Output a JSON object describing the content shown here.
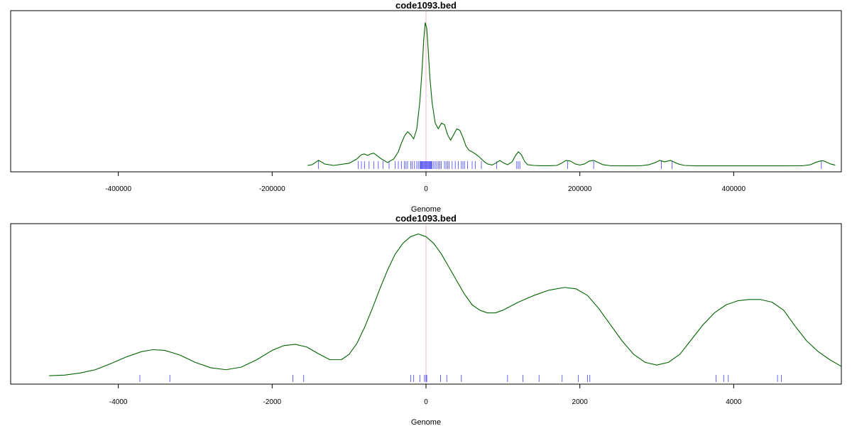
{
  "chart_data": [
    {
      "type": "line",
      "title": "code1093.bed",
      "xlabel": "Genome",
      "ylabel": "",
      "xlim": [
        -540000,
        540000
      ],
      "x_ticks": [
        -400000,
        -200000,
        0,
        200000,
        400000
      ],
      "x_tick_labels": [
        "-400000",
        "-200000",
        "0",
        "200000",
        "400000"
      ],
      "reference_line_x": 0,
      "series": [
        {
          "color": "#006400",
          "x": [
            -154000,
            -148000,
            -144000,
            -140000,
            -136000,
            -132000,
            -120000,
            -100000,
            -90000,
            -84000,
            -80000,
            -76000,
            -72000,
            -68000,
            -64000,
            -58000,
            -50000,
            -42000,
            -36000,
            -32000,
            -28000,
            -24000,
            -20000,
            -16000,
            -12000,
            -8000,
            -5000,
            -3000,
            -1000,
            1000,
            3000,
            5000,
            8000,
            12000,
            16000,
            20000,
            24000,
            28000,
            32000,
            36000,
            40000,
            44000,
            48000,
            52000,
            56000,
            60000,
            64000,
            68000,
            72000,
            76000,
            80000,
            86000,
            92000,
            96000,
            100000,
            106000,
            112000,
            116000,
            120000,
            124000,
            128000,
            132000,
            140000,
            150000,
            160000,
            170000,
            176000,
            182000,
            188000,
            194000,
            200000,
            206000,
            212000,
            218000,
            224000,
            230000,
            240000,
            260000,
            280000,
            290000,
            298000,
            304000,
            310000,
            314000,
            318000,
            322000,
            328000,
            336000,
            350000,
            380000,
            420000,
            460000,
            490000,
            500000,
            506000,
            512000,
            516000,
            520000,
            526000,
            532000
          ],
          "y": [
            0.5,
            1,
            2.5,
            4,
            3,
            1.5,
            0.5,
            2,
            5,
            8,
            8.5,
            7.5,
            8.5,
            9,
            7.5,
            5,
            2.5,
            5,
            10,
            16,
            21,
            24,
            22,
            19,
            26,
            45,
            68,
            88,
            100,
            96,
            80,
            62,
            44,
            30,
            26,
            30,
            29,
            22,
            18,
            22,
            26,
            25,
            20,
            14,
            11,
            10,
            8.5,
            7,
            5,
            3,
            1.5,
            0.8,
            2.5,
            4,
            2.5,
            1,
            3,
            7,
            10,
            8,
            3.5,
            1,
            0.5,
            0.3,
            0.3,
            0.5,
            2,
            4,
            3.5,
            1.5,
            0.8,
            1.5,
            3.5,
            4,
            2.5,
            1,
            0.3,
            0.2,
            0.3,
            1,
            2.5,
            4,
            3,
            3.5,
            4,
            3,
            1.5,
            0.5,
            0.2,
            0.2,
            0.2,
            0.2,
            0.3,
            1,
            2.5,
            3.5,
            3.8,
            3,
            1.5,
            0.7
          ]
        }
      ],
      "ylim": [
        0,
        105
      ],
      "rug": [
        -140000,
        -88000,
        -84000,
        -80000,
        -74000,
        -68000,
        -62000,
        -56000,
        -48000,
        -40000,
        -36000,
        -32000,
        -28000,
        -26000,
        -24000,
        -20000,
        -18000,
        -15000,
        -12000,
        -10000,
        -8000,
        -7000,
        -6000,
        -5000,
        -4000,
        -3000,
        -2000,
        -1000,
        0,
        1000,
        2000,
        3000,
        4000,
        5000,
        6000,
        7000,
        8000,
        10000,
        12000,
        14000,
        16000,
        18000,
        20000,
        24000,
        26000,
        28000,
        30000,
        34000,
        38000,
        42000,
        46000,
        48000,
        50000,
        54000,
        60000,
        64000,
        72000,
        92000,
        118000,
        120000,
        122000,
        184000,
        218000,
        306000,
        320000,
        514000
      ],
      "rug_color": "#0000ff"
    },
    {
      "type": "line",
      "title": "code1093.bed",
      "xlabel": "Genome",
      "ylabel": "",
      "xlim": [
        -5400,
        5400
      ],
      "x_ticks": [
        -4000,
        -2000,
        0,
        2000,
        4000
      ],
      "x_tick_labels": [
        "-4000",
        "-2000",
        "0",
        "2000",
        "4000"
      ],
      "reference_line_x": 0,
      "series": [
        {
          "color": "#006400",
          "x": [
            -4900,
            -4700,
            -4500,
            -4300,
            -4100,
            -3900,
            -3700,
            -3550,
            -3400,
            -3200,
            -3000,
            -2800,
            -2600,
            -2400,
            -2200,
            -2000,
            -1850,
            -1700,
            -1550,
            -1400,
            -1250,
            -1100,
            -1000,
            -900,
            -800,
            -700,
            -600,
            -500,
            -400,
            -300,
            -200,
            -100,
            0,
            100,
            200,
            300,
            400,
            500,
            600,
            700,
            800,
            900,
            1000,
            1100,
            1200,
            1400,
            1600,
            1800,
            1950,
            2100,
            2250,
            2400,
            2550,
            2700,
            2850,
            3000,
            3150,
            3300,
            3450,
            3600,
            3750,
            3900,
            4050,
            4200,
            4350,
            4500,
            4650,
            4800,
            4950,
            5100,
            5250,
            5400
          ],
          "y": [
            2,
            2.5,
            4,
            6.5,
            11,
            16,
            20,
            21.5,
            21,
            17.5,
            12,
            8,
            6.5,
            8.5,
            14,
            21,
            24.5,
            25.5,
            23.5,
            18.5,
            14,
            14,
            18,
            26,
            38,
            52,
            67,
            81,
            93,
            101,
            106,
            108,
            106,
            101,
            93,
            83,
            73,
            63,
            55,
            51,
            49,
            49,
            51,
            54,
            57,
            62,
            66,
            68,
            67,
            62,
            52,
            40,
            28,
            18,
            12,
            10,
            12,
            18,
            29,
            40,
            49,
            55,
            58,
            59,
            59,
            57,
            51,
            39,
            28,
            20,
            14,
            9
          ]
        }
      ],
      "ylim": [
        0,
        112
      ],
      "rug": [
        -3720,
        -3330,
        -1730,
        -1590,
        -200,
        -160,
        -80,
        -20,
        0,
        10,
        190,
        270,
        460,
        1060,
        1260,
        1470,
        1770,
        1980,
        2100,
        2130,
        3770,
        3870,
        3930,
        4570,
        4620
      ],
      "rug_color": "#0000ff"
    }
  ]
}
